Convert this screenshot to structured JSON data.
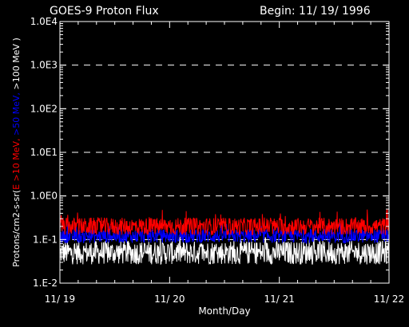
{
  "chart_data": {
    "type": "line",
    "title": "GOES-9 Proton Flux",
    "subtitle": "Begin: 11/ 19/ 1996",
    "xlabel": "Month/Day",
    "ylabel": {
      "prefix": "Protons/cm2-s-sr(",
      "parts": [
        {
          "text": "E >10 MeV, ",
          "color": "#ff0000"
        },
        {
          "text": ">50 MeV, ",
          "color": "#0000ff"
        },
        {
          "text": ">100 MeV )",
          "color": "#ffffff"
        }
      ]
    },
    "y_scale": "log",
    "ylim": [
      0.01,
      10000
    ],
    "y_ticks": [
      {
        "value": 0.01,
        "label": "1.E-2"
      },
      {
        "value": 0.1,
        "label": "1.E-1"
      },
      {
        "value": 1,
        "label": "1.0E0"
      },
      {
        "value": 10,
        "label": "1.0E1"
      },
      {
        "value": 100,
        "label": "1.0E2"
      },
      {
        "value": 1000,
        "label": "1.0E3"
      },
      {
        "value": 10000,
        "label": "1.0E4"
      }
    ],
    "gridlines": [
      0.1,
      1,
      10,
      100,
      1000
    ],
    "xlim": [
      0,
      3
    ],
    "x_ticks": [
      {
        "value": 0,
        "label": "11/ 19"
      },
      {
        "value": 1,
        "label": "11/ 20"
      },
      {
        "value": 2,
        "label": "11/ 21"
      },
      {
        "value": 3,
        "label": "11/ 22"
      }
    ],
    "series": [
      {
        "name": "E >10 MeV",
        "color": "#ff0000",
        "typical": 0.2,
        "min": 0.12,
        "max": 0.5
      },
      {
        "name": ">50 MeV",
        "color": "#0000ff",
        "typical": 0.12,
        "min": 0.08,
        "max": 0.25
      },
      {
        "name": ">100 MeV",
        "color": "#ffffff",
        "typical": 0.05,
        "min": 0.025,
        "max": 0.12
      }
    ]
  }
}
